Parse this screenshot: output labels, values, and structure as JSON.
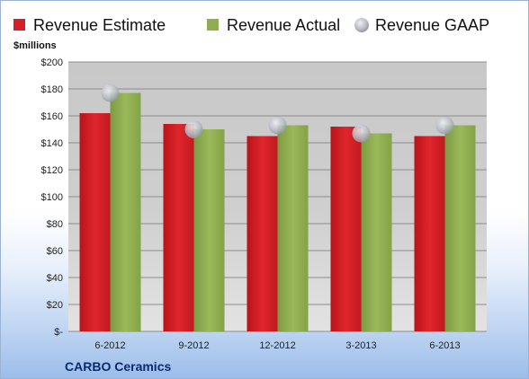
{
  "chart_data": {
    "type": "bar",
    "title": "",
    "ylabel": "$millions",
    "xlabel": "",
    "company": "CARBO Ceramics",
    "categories": [
      "6-2012",
      "9-2012",
      "12-2012",
      "3-2013",
      "6-2013"
    ],
    "ylim": [
      0,
      200
    ],
    "ytick_values": [
      0,
      20,
      40,
      60,
      80,
      100,
      120,
      140,
      160,
      180,
      200
    ],
    "ytick_labels": [
      "$-",
      "$20",
      "$40",
      "$60",
      "$80",
      "$100",
      "$120",
      "$140",
      "$160",
      "$180",
      "$200"
    ],
    "legend_position": "top",
    "grid": true,
    "series": [
      {
        "name": "Revenue Estimate",
        "kind": "bar",
        "color": "#d62027",
        "values": [
          162,
          154,
          145,
          152,
          145
        ]
      },
      {
        "name": "Revenue Actual",
        "kind": "bar",
        "color": "#8fae4f",
        "values": [
          177,
          150,
          153,
          147,
          153
        ]
      },
      {
        "name": "Revenue GAAP",
        "kind": "marker",
        "color": "#b8bcc4",
        "values": [
          177,
          150,
          153,
          147,
          153
        ]
      }
    ]
  }
}
